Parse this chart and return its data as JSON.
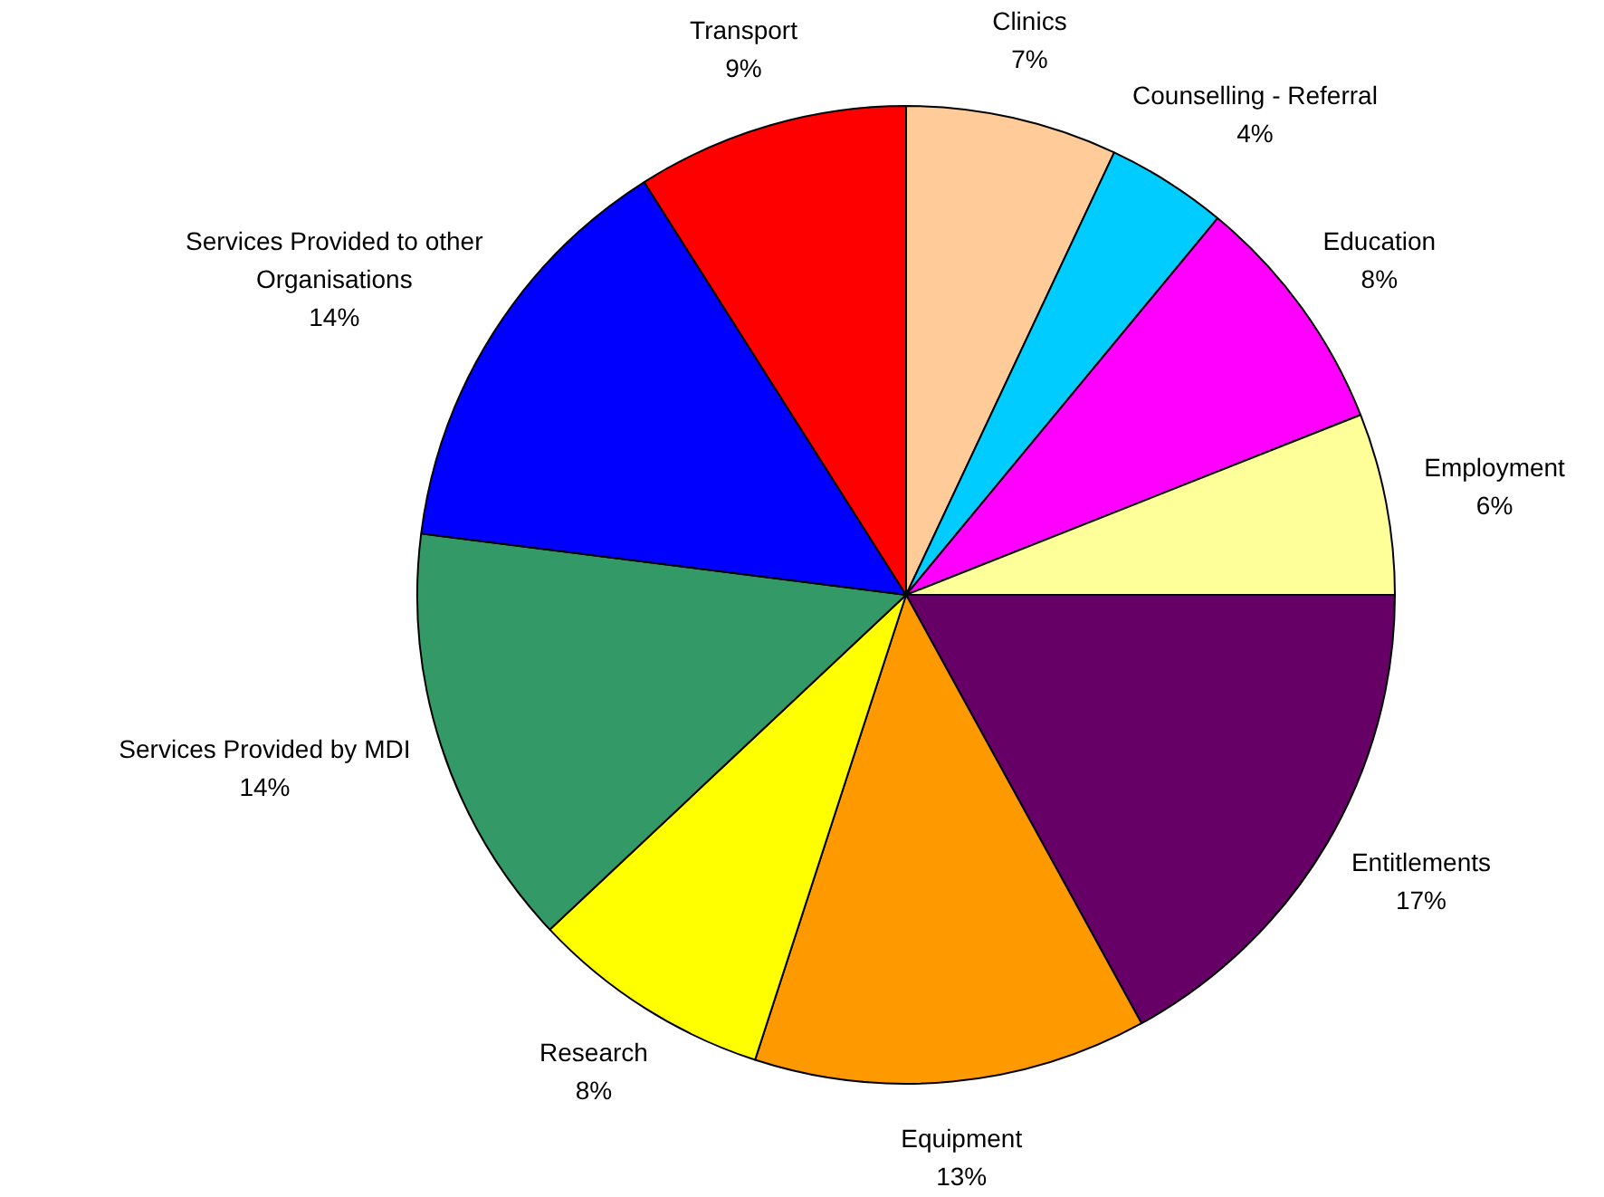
{
  "chart_data": {
    "type": "pie",
    "categories": [
      "Clinics",
      "Counselling - Referral",
      "Education",
      "Employment",
      "Entitlements",
      "Equipment",
      "Research",
      "Services Provided by MDI",
      "Services Provided to other Organisations",
      "Transport"
    ],
    "values": [
      7,
      4,
      8,
      6,
      17,
      13,
      8,
      14,
      14,
      9
    ],
    "value_labels": [
      "7%",
      "4%",
      "8%",
      "6%",
      "17%",
      "13%",
      "8%",
      "14%",
      "14%",
      "9%"
    ],
    "colors": [
      "#ffcc99",
      "#00ccff",
      "#ff00ff",
      "#ffff99",
      "#660066",
      "#ff9900",
      "#ffff00",
      "#339966",
      "#0000ff",
      "#ff0000"
    ],
    "legend": false
  }
}
